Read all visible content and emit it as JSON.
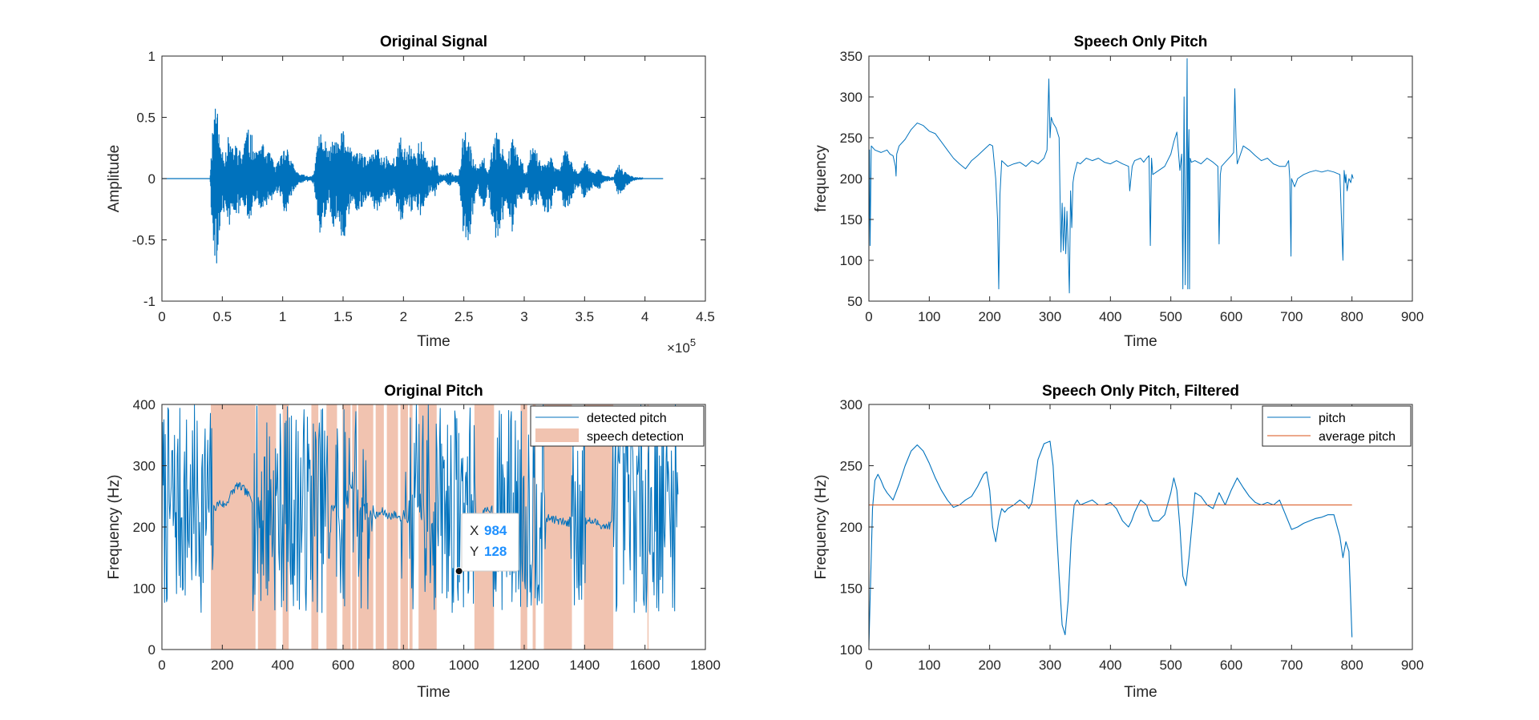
{
  "colors": {
    "series_blue": "#0072BD",
    "series_orange": "#D95319",
    "speech_fill": "#F1C3B0",
    "axis": "#262626",
    "datatip_value": "#1E90FF"
  },
  "chart_data": [
    {
      "id": "original-signal",
      "type": "line",
      "title": "Original Signal",
      "xlabel": "Time",
      "ylabel": "Amplitude",
      "xlim": [
        0,
        450000
      ],
      "ylim": [
        -1,
        1
      ],
      "x_exponent_label": "×10",
      "x_exponent_power": "5",
      "x_ticks": [
        0,
        50000,
        100000,
        150000,
        200000,
        250000,
        300000,
        350000,
        400000,
        450000
      ],
      "x_tick_labels": [
        "0",
        "0.5",
        "1",
        "1.5",
        "2",
        "2.5",
        "3",
        "3.5",
        "4",
        "4.5"
      ],
      "y_ticks": [
        -1,
        -0.5,
        0,
        0.5,
        1
      ],
      "y_tick_labels": [
        "-1",
        "-0.5",
        "0",
        "0.5",
        "1"
      ],
      "signal_extent": [
        0,
        415000
      ],
      "envelope": {
        "x": [
          40000,
          42000,
          44000,
          46000,
          48000,
          52000,
          55000,
          58000,
          62000,
          66000,
          70000,
          74000,
          78000,
          82000,
          86000,
          90000,
          94000,
          98000,
          102000,
          106000,
          110000,
          114000,
          118000,
          122000,
          126000,
          130000,
          134000,
          138000,
          142000,
          146000,
          150000,
          154000,
          158000,
          162000,
          166000,
          170000,
          174000,
          178000,
          182000,
          186000,
          190000,
          194000,
          198000,
          202000,
          206000,
          210000,
          214000,
          218000,
          222000,
          226000,
          230000,
          234000,
          238000,
          242000,
          246000,
          250000,
          254000,
          258000,
          262000,
          266000,
          270000,
          274000,
          278000,
          282000,
          286000,
          290000,
          294000,
          298000,
          302000,
          306000,
          310000,
          314000,
          318000,
          322000,
          326000,
          330000,
          334000,
          338000,
          342000,
          346000,
          350000,
          354000,
          358000,
          362000,
          366000,
          370000,
          374000,
          378000,
          382000,
          386000,
          390000,
          394000,
          398000
        ],
        "upper": [
          0.05,
          0.45,
          0.68,
          0.55,
          0.3,
          0.22,
          0.35,
          0.25,
          0.3,
          0.2,
          0.42,
          0.38,
          0.22,
          0.3,
          0.25,
          0.2,
          0.1,
          0.18,
          0.32,
          0.2,
          0.08,
          0.04,
          0.03,
          0.02,
          0.04,
          0.42,
          0.35,
          0.22,
          0.35,
          0.28,
          0.43,
          0.3,
          0.2,
          0.25,
          0.22,
          0.15,
          0.2,
          0.28,
          0.18,
          0.2,
          0.15,
          0.2,
          0.36,
          0.22,
          0.3,
          0.2,
          0.35,
          0.18,
          0.12,
          0.18,
          0.04,
          0.03,
          0.06,
          0.03,
          0.05,
          0.47,
          0.35,
          0.15,
          0.08,
          0.2,
          0.05,
          0.3,
          0.42,
          0.3,
          0.15,
          0.38,
          0.2,
          0.15,
          0.05,
          0.3,
          0.22,
          0.15,
          0.12,
          0.18,
          0.08,
          0.1,
          0.25,
          0.18,
          0.08,
          0.05,
          0.15,
          0.1,
          0.05,
          0.08,
          0.03,
          0.02,
          0.02,
          0.12,
          0.08,
          0.04,
          0.02,
          0.01,
          0.01
        ],
        "lower": [
          -0.05,
          -0.6,
          -0.78,
          -0.7,
          -0.4,
          -0.25,
          -0.42,
          -0.3,
          -0.35,
          -0.22,
          -0.3,
          -0.35,
          -0.2,
          -0.25,
          -0.22,
          -0.2,
          -0.1,
          -0.15,
          -0.3,
          -0.18,
          -0.08,
          -0.04,
          -0.03,
          -0.02,
          -0.05,
          -0.48,
          -0.35,
          -0.2,
          -0.4,
          -0.3,
          -0.55,
          -0.35,
          -0.2,
          -0.28,
          -0.25,
          -0.15,
          -0.22,
          -0.3,
          -0.2,
          -0.2,
          -0.15,
          -0.22,
          -0.38,
          -0.22,
          -0.3,
          -0.2,
          -0.32,
          -0.18,
          -0.12,
          -0.15,
          -0.04,
          -0.03,
          -0.06,
          -0.03,
          -0.05,
          -0.5,
          -0.55,
          -0.25,
          -0.1,
          -0.3,
          -0.08,
          -0.4,
          -0.55,
          -0.35,
          -0.2,
          -0.48,
          -0.22,
          -0.18,
          -0.08,
          -0.3,
          -0.22,
          -0.15,
          -0.35,
          -0.25,
          -0.1,
          -0.12,
          -0.28,
          -0.2,
          -0.1,
          -0.08,
          -0.18,
          -0.12,
          -0.06,
          -0.1,
          -0.03,
          -0.02,
          -0.02,
          -0.15,
          -0.1,
          -0.05,
          -0.02,
          -0.01,
          -0.01
        ]
      }
    },
    {
      "id": "speech-only-pitch",
      "type": "line",
      "title": "Speech Only Pitch",
      "xlabel": "Time",
      "ylabel": "frequency",
      "xlim": [
        0,
        900
      ],
      "ylim": [
        50,
        350
      ],
      "x_ticks": [
        0,
        100,
        200,
        300,
        400,
        500,
        600,
        700,
        800,
        900
      ],
      "y_ticks": [
        50,
        100,
        150,
        200,
        250,
        300,
        350
      ],
      "series": [
        {
          "x": [
            0,
            1,
            2,
            4,
            10,
            20,
            30,
            35,
            40,
            44,
            45,
            46,
            50,
            60,
            70,
            80,
            90,
            100,
            110,
            120,
            130,
            140,
            150,
            160,
            170,
            180,
            190,
            200,
            205,
            210,
            213,
            215,
            217,
            220,
            230,
            240,
            250,
            260,
            270,
            280,
            290,
            295,
            298,
            300,
            302,
            305,
            310,
            315,
            318,
            320,
            322,
            324,
            326,
            328,
            330,
            332,
            334,
            336,
            338,
            340,
            345,
            350,
            360,
            370,
            380,
            390,
            400,
            410,
            420,
            430,
            432,
            434,
            436,
            440,
            450,
            455,
            460,
            464,
            466,
            468,
            470,
            480,
            490,
            500,
            505,
            510,
            515,
            518,
            520,
            522,
            524,
            526,
            527,
            528,
            529,
            530,
            531,
            532,
            534,
            540,
            550,
            560,
            570,
            578,
            580,
            582,
            584,
            590,
            600,
            604,
            606,
            608,
            610,
            620,
            630,
            640,
            650,
            660,
            670,
            680,
            690,
            695,
            697,
            699,
            700,
            705,
            710,
            720,
            730,
            740,
            750,
            760,
            770,
            780,
            785,
            787,
            789,
            790,
            792,
            795,
            798,
            800,
            802
          ],
          "y": [
            115,
            235,
            118,
            240,
            235,
            232,
            235,
            230,
            228,
            215,
            203,
            230,
            240,
            248,
            260,
            268,
            265,
            258,
            255,
            245,
            235,
            225,
            218,
            212,
            222,
            228,
            235,
            242,
            240,
            200,
            150,
            65,
            180,
            222,
            215,
            218,
            220,
            215,
            222,
            218,
            225,
            235,
            322,
            250,
            275,
            268,
            262,
            250,
            110,
            170,
            112,
            165,
            108,
            160,
            115,
            60,
            185,
            140,
            195,
            205,
            220,
            218,
            225,
            222,
            225,
            220,
            218,
            222,
            218,
            215,
            185,
            200,
            215,
            222,
            225,
            220,
            225,
            228,
            118,
            225,
            205,
            210,
            215,
            230,
            245,
            257,
            210,
            230,
            65,
            300,
            70,
            240,
            347,
            65,
            230,
            260,
            65,
            225,
            220,
            222,
            218,
            225,
            220,
            215,
            120,
            205,
            215,
            220,
            228,
            232,
            310,
            250,
            218,
            240,
            235,
            228,
            222,
            225,
            218,
            215,
            215,
            222,
            200,
            105,
            200,
            190,
            200,
            205,
            208,
            210,
            208,
            210,
            208,
            205,
            100,
            210,
            195,
            205,
            185,
            200,
            195,
            205,
            200
          ]
        }
      ]
    },
    {
      "id": "original-pitch",
      "type": "line",
      "title": "Original Pitch",
      "xlabel": "Time",
      "ylabel": "Frequency (Hz)",
      "xlim": [
        0,
        1800
      ],
      "ylim": [
        0,
        400
      ],
      "x_ticks": [
        0,
        200,
        400,
        600,
        800,
        1000,
        1200,
        1400,
        1600,
        1800
      ],
      "y_ticks": [
        0,
        100,
        200,
        300,
        400
      ],
      "legend_position": "top-right",
      "legend": [
        "detected pitch",
        "speech detection"
      ],
      "speech_regions": [
        [
          162,
          310
        ],
        [
          318,
          378
        ],
        [
          400,
          420
        ],
        [
          495,
          518
        ],
        [
          545,
          580
        ],
        [
          598,
          625
        ],
        [
          630,
          645
        ],
        [
          650,
          700
        ],
        [
          708,
          735
        ],
        [
          745,
          782
        ],
        [
          790,
          815
        ],
        [
          820,
          830
        ],
        [
          850,
          910
        ],
        [
          1035,
          1100
        ],
        [
          1188,
          1210
        ],
        [
          1228,
          1238
        ],
        [
          1265,
          1358
        ],
        [
          1398,
          1495
        ],
        [
          1608,
          1612
        ]
      ],
      "datatip": {
        "x_label": "X",
        "x_value": "984",
        "y_label": "Y",
        "y_value": "128",
        "x": 984,
        "y": 128
      },
      "pitch_speech_trend": {
        "x": [
          170,
          190,
          210,
          230,
          250,
          270,
          290,
          310,
          330,
          350,
          370,
          390,
          410,
          430,
          450,
          470,
          490,
          510,
          530,
          550,
          570,
          590,
          610,
          630,
          650,
          670,
          690,
          710,
          730,
          750,
          770,
          790,
          810,
          830,
          850,
          870,
          890,
          910,
          930,
          950,
          970,
          990,
          1010,
          1030,
          1050,
          1070,
          1090,
          1110,
          1130,
          1150,
          1170,
          1190,
          1210,
          1230,
          1250,
          1270,
          1290,
          1310,
          1330,
          1350,
          1370,
          1390,
          1410,
          1430,
          1450,
          1470,
          1490
        ],
        "y": [
          228,
          240,
          235,
          255,
          268,
          262,
          250,
          240,
          235,
          240,
          238,
          232,
          225,
          210,
          215,
          220,
          218,
          222,
          225,
          228,
          232,
          235,
          240,
          275,
          250,
          228,
          222,
          218,
          225,
          218,
          220,
          215,
          222,
          235,
          250,
          205,
          215,
          222,
          218,
          225,
          222,
          218,
          220,
          215,
          210,
          225,
          230,
          228,
          222,
          220,
          215,
          218,
          230,
          220,
          210,
          212,
          215,
          210,
          208,
          205,
          208,
          202,
          210,
          208,
          205,
          200,
          205
        ]
      }
    },
    {
      "id": "speech-only-pitch-filtered",
      "type": "line",
      "title": "Speech Only Pitch, Filtered",
      "xlabel": "Time",
      "ylabel": "Frequency (Hz)",
      "xlim": [
        0,
        900
      ],
      "ylim": [
        100,
        300
      ],
      "x_ticks": [
        0,
        100,
        200,
        300,
        400,
        500,
        600,
        700,
        800,
        900
      ],
      "y_ticks": [
        100,
        150,
        200,
        250,
        300
      ],
      "legend_position": "top-right",
      "series": [
        {
          "name": "pitch",
          "x": [
            0,
            3,
            6,
            10,
            15,
            20,
            25,
            30,
            40,
            50,
            60,
            70,
            80,
            90,
            100,
            110,
            120,
            130,
            140,
            150,
            160,
            170,
            180,
            190,
            195,
            200,
            205,
            210,
            215,
            220,
            225,
            230,
            240,
            250,
            260,
            265,
            270,
            280,
            290,
            300,
            305,
            310,
            315,
            320,
            325,
            330,
            335,
            340,
            345,
            350,
            360,
            370,
            380,
            390,
            400,
            410,
            420,
            430,
            435,
            440,
            450,
            460,
            465,
            470,
            480,
            490,
            500,
            505,
            510,
            515,
            520,
            525,
            530,
            540,
            550,
            560,
            570,
            580,
            590,
            600,
            610,
            620,
            630,
            640,
            650,
            660,
            670,
            680,
            690,
            700,
            710,
            720,
            730,
            740,
            750,
            760,
            770,
            780,
            785,
            790,
            795,
            800
          ],
          "y": [
            103,
            160,
            215,
            238,
            243,
            238,
            232,
            228,
            222,
            235,
            250,
            262,
            267,
            262,
            252,
            240,
            230,
            222,
            216,
            218,
            222,
            225,
            233,
            243,
            245,
            230,
            200,
            188,
            205,
            215,
            212,
            215,
            218,
            222,
            218,
            215,
            220,
            255,
            268,
            270,
            250,
            205,
            160,
            120,
            112,
            140,
            190,
            218,
            222,
            218,
            220,
            222,
            218,
            218,
            220,
            215,
            205,
            200,
            205,
            212,
            222,
            218,
            210,
            205,
            205,
            210,
            228,
            240,
            230,
            200,
            160,
            152,
            175,
            228,
            225,
            218,
            215,
            228,
            218,
            230,
            240,
            232,
            225,
            220,
            218,
            220,
            218,
            222,
            210,
            198,
            200,
            203,
            205,
            207,
            208,
            210,
            210,
            192,
            175,
            188,
            180,
            110
          ]
        },
        {
          "name": "average pitch",
          "x": [
            0,
            800
          ],
          "y": [
            218,
            218
          ]
        }
      ]
    }
  ]
}
